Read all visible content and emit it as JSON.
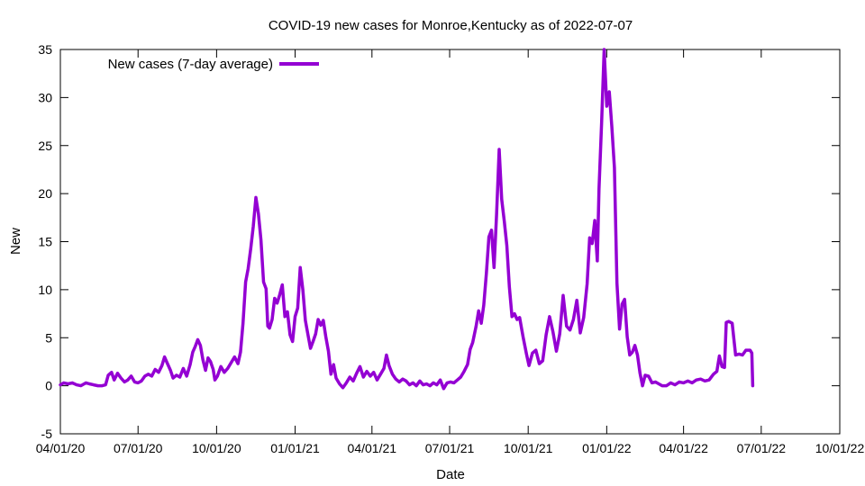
{
  "chart_data": {
    "type": "line",
    "title": "COVID-19 new cases for Monroe,Kentucky as of 2022-07-07",
    "xlabel": "Date",
    "ylabel": "New",
    "xlim": [
      "2020-04-01",
      "2022-10-01"
    ],
    "ylim": [
      -5,
      35
    ],
    "yticks": [
      -5,
      0,
      5,
      10,
      15,
      20,
      25,
      30,
      35
    ],
    "ytick_labels": [
      "-5",
      "0",
      "5",
      "10",
      "15",
      "20",
      "25",
      "30",
      "35"
    ],
    "xticks": [
      "2020-04-01",
      "2020-07-01",
      "2020-10-01",
      "2021-01-01",
      "2021-04-01",
      "2021-07-01",
      "2021-10-01",
      "2022-01-01",
      "2022-04-01",
      "2022-07-01",
      "2022-10-01"
    ],
    "xtick_labels": [
      "04/01/20",
      "07/01/20",
      "10/01/20",
      "01/01/21",
      "04/01/21",
      "07/01/21",
      "10/01/21",
      "01/01/22",
      "04/01/22",
      "07/01/22",
      "10/01/22"
    ],
    "grid": false,
    "legend_position": "top-left",
    "series": [
      {
        "name": "New cases (7-day average)",
        "color": "#9400d3",
        "points": [
          [
            "2020-04-01",
            0.1
          ],
          [
            "2020-04-05",
            0.3
          ],
          [
            "2020-04-10",
            0.2
          ],
          [
            "2020-04-15",
            0.3
          ],
          [
            "2020-04-20",
            0.1
          ],
          [
            "2020-04-25",
            0.0
          ],
          [
            "2020-05-01",
            0.3
          ],
          [
            "2020-05-05",
            0.2
          ],
          [
            "2020-05-10",
            0.1
          ],
          [
            "2020-05-15",
            0.0
          ],
          [
            "2020-05-20",
            0.0
          ],
          [
            "2020-05-24",
            0.1
          ],
          [
            "2020-05-27",
            1.1
          ],
          [
            "2020-05-31",
            1.4
          ],
          [
            "2020-06-03",
            0.6
          ],
          [
            "2020-06-07",
            1.3
          ],
          [
            "2020-06-11",
            0.8
          ],
          [
            "2020-06-15",
            0.4
          ],
          [
            "2020-06-19",
            0.6
          ],
          [
            "2020-06-23",
            1.0
          ],
          [
            "2020-06-27",
            0.4
          ],
          [
            "2020-07-01",
            0.3
          ],
          [
            "2020-07-05",
            0.5
          ],
          [
            "2020-07-09",
            1.0
          ],
          [
            "2020-07-13",
            1.2
          ],
          [
            "2020-07-17",
            1.0
          ],
          [
            "2020-07-21",
            1.7
          ],
          [
            "2020-07-25",
            1.4
          ],
          [
            "2020-07-29",
            2.1
          ],
          [
            "2020-08-01",
            3.0
          ],
          [
            "2020-08-04",
            2.4
          ],
          [
            "2020-08-08",
            1.6
          ],
          [
            "2020-08-11",
            0.8
          ],
          [
            "2020-08-15",
            1.1
          ],
          [
            "2020-08-19",
            0.9
          ],
          [
            "2020-08-23",
            1.8
          ],
          [
            "2020-08-27",
            1.0
          ],
          [
            "2020-08-31",
            2.2
          ],
          [
            "2020-09-03",
            3.5
          ],
          [
            "2020-09-06",
            4.1
          ],
          [
            "2020-09-09",
            4.8
          ],
          [
            "2020-09-12",
            4.2
          ],
          [
            "2020-09-15",
            2.7
          ],
          [
            "2020-09-18",
            1.6
          ],
          [
            "2020-09-21",
            2.9
          ],
          [
            "2020-09-24",
            2.5
          ],
          [
            "2020-09-27",
            1.7
          ],
          [
            "2020-09-29",
            0.6
          ],
          [
            "2020-10-02",
            1.0
          ],
          [
            "2020-10-06",
            2.0
          ],
          [
            "2020-10-10",
            1.4
          ],
          [
            "2020-10-14",
            1.8
          ],
          [
            "2020-10-18",
            2.4
          ],
          [
            "2020-10-22",
            3.0
          ],
          [
            "2020-10-26",
            2.3
          ],
          [
            "2020-10-29",
            3.5
          ],
          [
            "2020-11-01",
            6.5
          ],
          [
            "2020-11-04",
            10.8
          ],
          [
            "2020-11-07",
            12.2
          ],
          [
            "2020-11-10",
            14.3
          ],
          [
            "2020-11-13",
            16.6
          ],
          [
            "2020-11-16",
            19.6
          ],
          [
            "2020-11-19",
            17.9
          ],
          [
            "2020-11-22",
            15.2
          ],
          [
            "2020-11-25",
            10.8
          ],
          [
            "2020-11-28",
            10.1
          ],
          [
            "2020-11-30",
            6.2
          ],
          [
            "2020-12-02",
            6.0
          ],
          [
            "2020-12-05",
            6.9
          ],
          [
            "2020-12-08",
            9.1
          ],
          [
            "2020-12-11",
            8.6
          ],
          [
            "2020-12-14",
            9.5
          ],
          [
            "2020-12-17",
            10.5
          ],
          [
            "2020-12-20",
            7.2
          ],
          [
            "2020-12-23",
            7.7
          ],
          [
            "2020-12-26",
            5.3
          ],
          [
            "2020-12-29",
            4.6
          ],
          [
            "2021-01-01",
            7.2
          ],
          [
            "2021-01-04",
            8.1
          ],
          [
            "2021-01-07",
            12.3
          ],
          [
            "2021-01-10",
            10.0
          ],
          [
            "2021-01-13",
            6.8
          ],
          [
            "2021-01-16",
            5.3
          ],
          [
            "2021-01-19",
            3.9
          ],
          [
            "2021-01-22",
            4.6
          ],
          [
            "2021-01-25",
            5.4
          ],
          [
            "2021-01-28",
            6.9
          ],
          [
            "2021-01-31",
            6.3
          ],
          [
            "2021-02-03",
            6.8
          ],
          [
            "2021-02-06",
            5.1
          ],
          [
            "2021-02-09",
            3.6
          ],
          [
            "2021-02-12",
            1.2
          ],
          [
            "2021-02-15",
            2.2
          ],
          [
            "2021-02-18",
            0.8
          ],
          [
            "2021-02-22",
            0.2
          ],
          [
            "2021-02-26",
            -0.2
          ],
          [
            "2021-03-02",
            0.3
          ],
          [
            "2021-03-06",
            0.9
          ],
          [
            "2021-03-10",
            0.5
          ],
          [
            "2021-03-14",
            1.3
          ],
          [
            "2021-03-18",
            2.0
          ],
          [
            "2021-03-22",
            0.9
          ],
          [
            "2021-03-26",
            1.5
          ],
          [
            "2021-03-30",
            1.0
          ],
          [
            "2021-04-03",
            1.4
          ],
          [
            "2021-04-07",
            0.6
          ],
          [
            "2021-04-11",
            1.2
          ],
          [
            "2021-04-15",
            1.8
          ],
          [
            "2021-04-18",
            3.2
          ],
          [
            "2021-04-21",
            2.1
          ],
          [
            "2021-04-25",
            1.2
          ],
          [
            "2021-04-29",
            0.7
          ],
          [
            "2021-05-03",
            0.4
          ],
          [
            "2021-05-07",
            0.7
          ],
          [
            "2021-05-11",
            0.5
          ],
          [
            "2021-05-15",
            0.1
          ],
          [
            "2021-05-19",
            0.3
          ],
          [
            "2021-05-23",
            0.0
          ],
          [
            "2021-05-27",
            0.5
          ],
          [
            "2021-05-31",
            0.1
          ],
          [
            "2021-06-04",
            0.2
          ],
          [
            "2021-06-08",
            0.0
          ],
          [
            "2021-06-12",
            0.3
          ],
          [
            "2021-06-16",
            0.1
          ],
          [
            "2021-06-20",
            0.6
          ],
          [
            "2021-06-24",
            -0.3
          ],
          [
            "2021-06-28",
            0.3
          ],
          [
            "2021-07-02",
            0.4
          ],
          [
            "2021-07-06",
            0.3
          ],
          [
            "2021-07-10",
            0.6
          ],
          [
            "2021-07-14",
            0.9
          ],
          [
            "2021-07-18",
            1.5
          ],
          [
            "2021-07-22",
            2.2
          ],
          [
            "2021-07-25",
            3.8
          ],
          [
            "2021-07-28",
            4.5
          ],
          [
            "2021-08-01",
            6.2
          ],
          [
            "2021-08-04",
            7.8
          ],
          [
            "2021-08-07",
            6.5
          ],
          [
            "2021-08-10",
            8.4
          ],
          [
            "2021-08-13",
            11.7
          ],
          [
            "2021-08-16",
            15.5
          ],
          [
            "2021-08-19",
            16.2
          ],
          [
            "2021-08-22",
            12.3
          ],
          [
            "2021-08-25",
            17.8
          ],
          [
            "2021-08-28",
            24.6
          ],
          [
            "2021-08-31",
            19.4
          ],
          [
            "2021-09-03",
            17.1
          ],
          [
            "2021-09-06",
            14.6
          ],
          [
            "2021-09-09",
            10.3
          ],
          [
            "2021-09-12",
            7.2
          ],
          [
            "2021-09-15",
            7.5
          ],
          [
            "2021-09-18",
            6.9
          ],
          [
            "2021-09-21",
            7.1
          ],
          [
            "2021-09-25",
            5.1
          ],
          [
            "2021-09-29",
            3.3
          ],
          [
            "2021-10-02",
            2.1
          ],
          [
            "2021-10-06",
            3.4
          ],
          [
            "2021-10-10",
            3.7
          ],
          [
            "2021-10-14",
            2.3
          ],
          [
            "2021-10-18",
            2.6
          ],
          [
            "2021-10-22",
            5.3
          ],
          [
            "2021-10-26",
            7.2
          ],
          [
            "2021-10-30",
            5.6
          ],
          [
            "2021-11-03",
            3.6
          ],
          [
            "2021-11-07",
            5.4
          ],
          [
            "2021-11-11",
            9.4
          ],
          [
            "2021-11-15",
            6.2
          ],
          [
            "2021-11-19",
            5.8
          ],
          [
            "2021-11-23",
            6.9
          ],
          [
            "2021-11-27",
            8.9
          ],
          [
            "2021-12-01",
            5.5
          ],
          [
            "2021-12-05",
            7.1
          ],
          [
            "2021-12-09",
            10.6
          ],
          [
            "2021-12-12",
            15.4
          ],
          [
            "2021-12-15",
            14.8
          ],
          [
            "2021-12-18",
            17.2
          ],
          [
            "2021-12-21",
            13.0
          ],
          [
            "2021-12-23",
            20.5
          ],
          [
            "2021-12-26",
            27.4
          ],
          [
            "2021-12-29",
            35.0
          ],
          [
            "2022-01-01",
            29.1
          ],
          [
            "2022-01-04",
            30.6
          ],
          [
            "2022-01-07",
            27.0
          ],
          [
            "2022-01-10",
            22.7
          ],
          [
            "2022-01-13",
            10.7
          ],
          [
            "2022-01-16",
            5.9
          ],
          [
            "2022-01-19",
            8.5
          ],
          [
            "2022-01-22",
            9.0
          ],
          [
            "2022-01-25",
            5.1
          ],
          [
            "2022-01-28",
            3.2
          ],
          [
            "2022-01-31",
            3.5
          ],
          [
            "2022-02-03",
            4.2
          ],
          [
            "2022-02-06",
            3.2
          ],
          [
            "2022-02-09",
            1.3
          ],
          [
            "2022-02-12",
            0.0
          ],
          [
            "2022-02-15",
            1.1
          ],
          [
            "2022-02-19",
            1.0
          ],
          [
            "2022-02-23",
            0.3
          ],
          [
            "2022-02-27",
            0.4
          ],
          [
            "2022-03-03",
            0.2
          ],
          [
            "2022-03-07",
            0.0
          ],
          [
            "2022-03-12",
            0.0
          ],
          [
            "2022-03-17",
            0.3
          ],
          [
            "2022-03-22",
            0.1
          ],
          [
            "2022-03-27",
            0.4
          ],
          [
            "2022-04-01",
            0.3
          ],
          [
            "2022-04-06",
            0.5
          ],
          [
            "2022-04-11",
            0.3
          ],
          [
            "2022-04-16",
            0.6
          ],
          [
            "2022-04-21",
            0.7
          ],
          [
            "2022-04-26",
            0.5
          ],
          [
            "2022-05-01",
            0.6
          ],
          [
            "2022-05-06",
            1.2
          ],
          [
            "2022-05-10",
            1.5
          ],
          [
            "2022-05-13",
            3.1
          ],
          [
            "2022-05-16",
            2.0
          ],
          [
            "2022-05-19",
            1.9
          ],
          [
            "2022-05-21",
            6.6
          ],
          [
            "2022-05-24",
            6.7
          ],
          [
            "2022-05-28",
            6.5
          ],
          [
            "2022-06-01",
            3.2
          ],
          [
            "2022-06-05",
            3.3
          ],
          [
            "2022-06-09",
            3.2
          ],
          [
            "2022-06-13",
            3.7
          ],
          [
            "2022-06-18",
            3.7
          ],
          [
            "2022-06-20",
            3.4
          ],
          [
            "2022-06-21",
            0.0
          ]
        ]
      }
    ]
  }
}
